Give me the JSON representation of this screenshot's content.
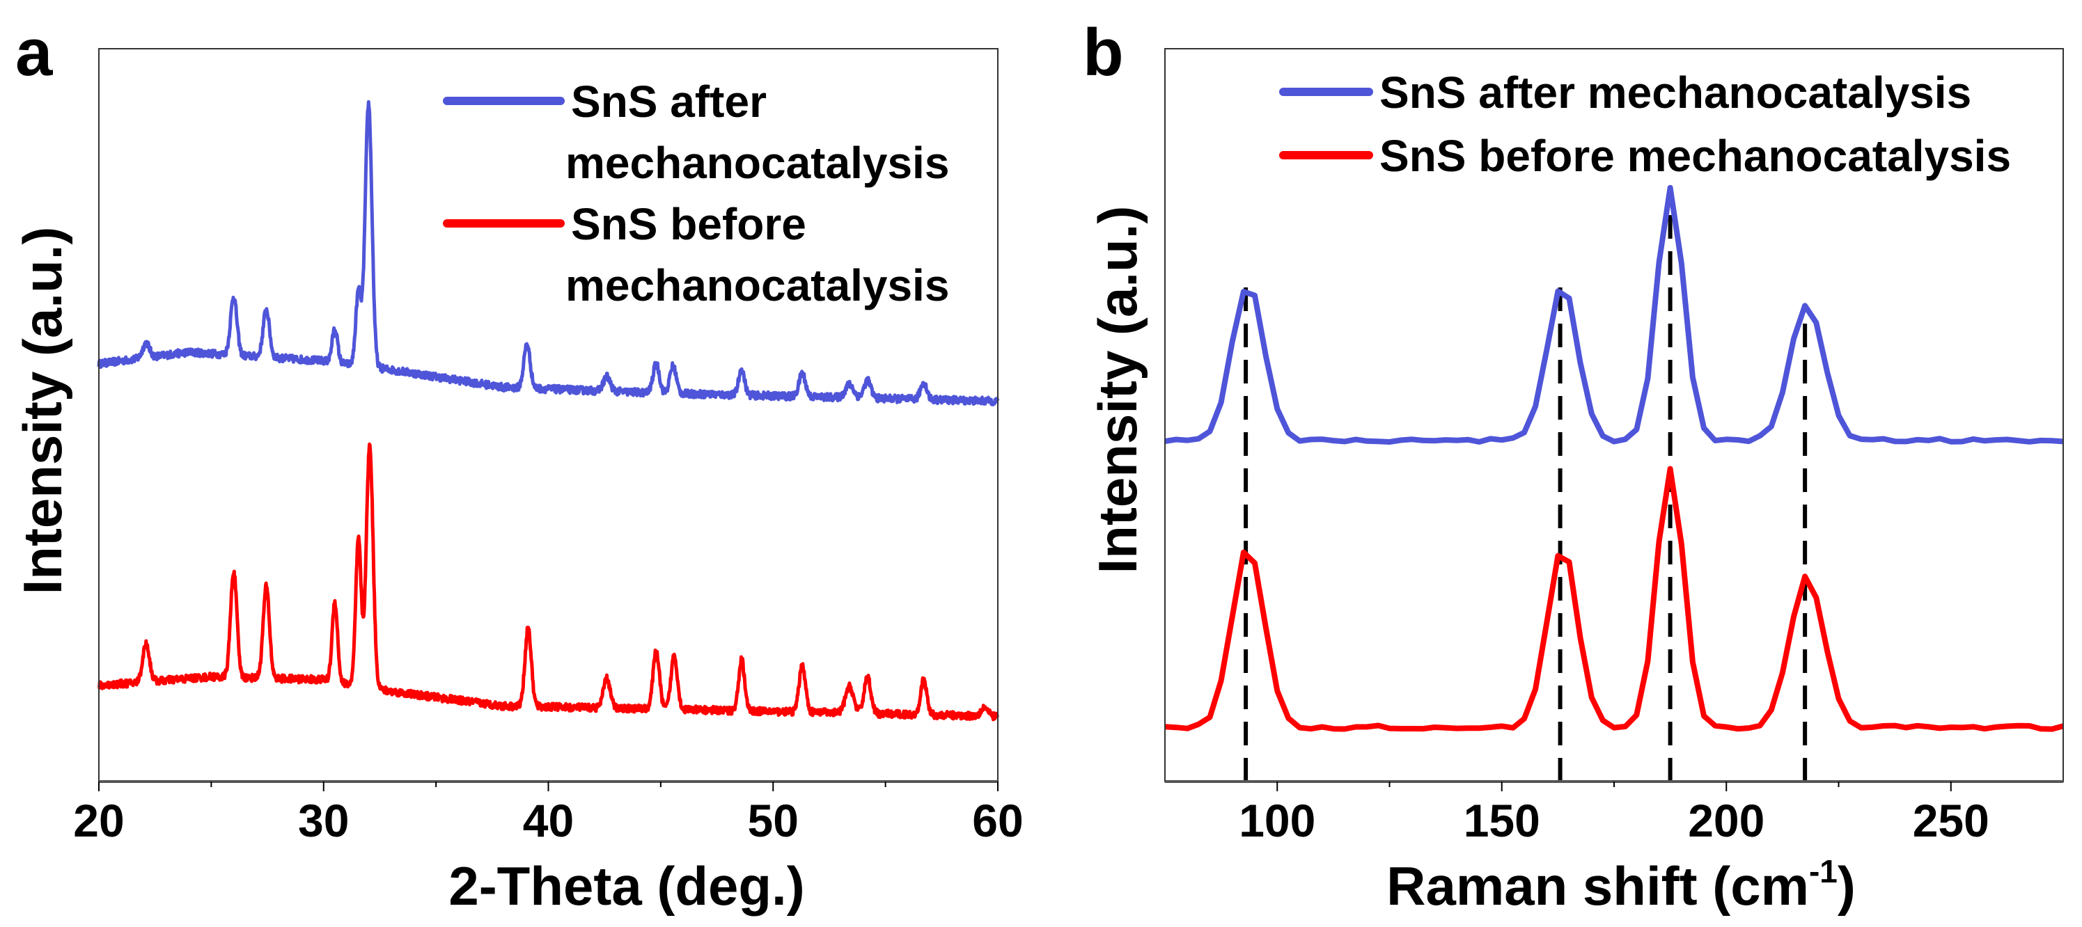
{
  "chart_data": [
    {
      "id": "xrd",
      "type": "line",
      "panel_label": "a",
      "xlabel": "2-Theta (deg.)",
      "ylabel": "Intensity (a.u.)",
      "xlim": [
        20,
        60
      ],
      "ylim": [
        0,
        100
      ],
      "xticks": [
        20,
        30,
        40,
        50,
        60
      ],
      "xtick_labels": [
        "20",
        "30",
        "40",
        "50",
        "60"
      ],
      "minor_xticks": [
        25,
        35,
        45,
        55
      ],
      "yticks": [],
      "grid": false,
      "legend": "top-right",
      "sample_step": 0.02,
      "noise": 1.0,
      "series": [
        {
          "legend_lines": [
            "SnS after",
            "mechanocatalysis"
          ],
          "color": "#4f55d8",
          "baseline": [
            [
              20,
              57.0
            ],
            [
              24,
              58.6
            ],
            [
              30,
              57.4
            ],
            [
              33,
              56.2
            ],
            [
              38,
              53.8
            ],
            [
              45,
              53.0
            ],
            [
              60,
              51.9
            ]
          ],
          "peaks": [
            [
              22.1,
              2.0,
              0.15
            ],
            [
              26.0,
              8.0,
              0.14
            ],
            [
              27.45,
              6.5,
              0.14
            ],
            [
              30.5,
              4.6,
              0.12
            ],
            [
              31.55,
              10.0,
              0.12
            ],
            [
              32.0,
              35.9,
              0.15
            ],
            [
              39.05,
              6.0,
              0.14
            ],
            [
              42.6,
              2.0,
              0.15
            ],
            [
              44.8,
              4.0,
              0.14
            ],
            [
              45.55,
              3.8,
              0.14
            ],
            [
              48.6,
              3.5,
              0.13
            ],
            [
              51.3,
              3.2,
              0.14
            ],
            [
              53.4,
              1.8,
              0.18
            ],
            [
              54.2,
              2.4,
              0.15
            ],
            [
              56.7,
              2.3,
              0.14
            ]
          ]
        },
        {
          "legend_lines": [
            "SnS before",
            "mechanocatalysis"
          ],
          "color": "#ff0000",
          "baseline": [
            [
              20,
              13.1
            ],
            [
              25,
              14.3
            ],
            [
              30,
              13.9
            ],
            [
              33,
              12.3
            ],
            [
              38,
              10.3
            ],
            [
              45,
              9.9
            ],
            [
              60,
              8.9
            ]
          ],
          "peaks": [
            [
              22.1,
              5.2,
              0.15
            ],
            [
              26.0,
              14.5,
              0.14
            ],
            [
              27.45,
              12.5,
              0.14
            ],
            [
              30.5,
              10.9,
              0.12
            ],
            [
              31.55,
              20.0,
              0.12
            ],
            [
              32.05,
              33.0,
              0.15
            ],
            [
              39.1,
              10.7,
              0.14
            ],
            [
              42.6,
              4.0,
              0.15
            ],
            [
              44.8,
              7.9,
              0.14
            ],
            [
              45.6,
              7.4,
              0.14
            ],
            [
              48.6,
              7.0,
              0.13
            ],
            [
              51.3,
              6.4,
              0.14
            ],
            [
              53.4,
              3.6,
              0.18
            ],
            [
              54.2,
              5.0,
              0.15
            ],
            [
              56.7,
              4.7,
              0.14
            ],
            [
              59.4,
              1.2,
              0.15
            ]
          ]
        }
      ]
    },
    {
      "id": "raman",
      "type": "line",
      "panel_label": "b",
      "xlabel": {
        "main": "Raman shift (cm",
        "sup": "-1",
        "close": ")"
      },
      "ylabel": "Intensity (a.u.)",
      "xlim": [
        75,
        275
      ],
      "ylim": [
        0,
        100
      ],
      "xticks": [
        100,
        150,
        200,
        250
      ],
      "xtick_labels": [
        "100",
        "150",
        "200",
        "250"
      ],
      "minor_xticks": [
        125,
        175,
        225
      ],
      "yticks": [],
      "grid": false,
      "legend": "top-right",
      "sample_step": 2.5,
      "noise": 0.5,
      "reference_lines": [
        93,
        163,
        187.5,
        217.5
      ],
      "series": [
        {
          "legend_lines": [
            "SnS after mechanocatalysis"
          ],
          "color": "#4f55d8",
          "baseline": [
            [
              75,
              46.5
            ],
            [
              275,
              46.6
            ]
          ],
          "peaks": [
            [
              93.5,
              21.4,
              3.6
            ],
            [
              163.5,
              21.4,
              3.4
            ],
            [
              187.5,
              34.5,
              3.0
            ],
            [
              218,
              18.6,
              3.8
            ]
          ]
        },
        {
          "legend_lines": [
            "SnS before mechanocatalysis"
          ],
          "color": "#ff0000",
          "baseline": [
            [
              75,
              7.4
            ],
            [
              275,
              7.4
            ]
          ],
          "peaks": [
            [
              93.5,
              24.6,
              3.6
            ],
            [
              163.5,
              24.6,
              3.4
            ],
            [
              187.5,
              35.5,
              3.0
            ],
            [
              218,
              20.6,
              3.8
            ]
          ]
        }
      ]
    }
  ]
}
